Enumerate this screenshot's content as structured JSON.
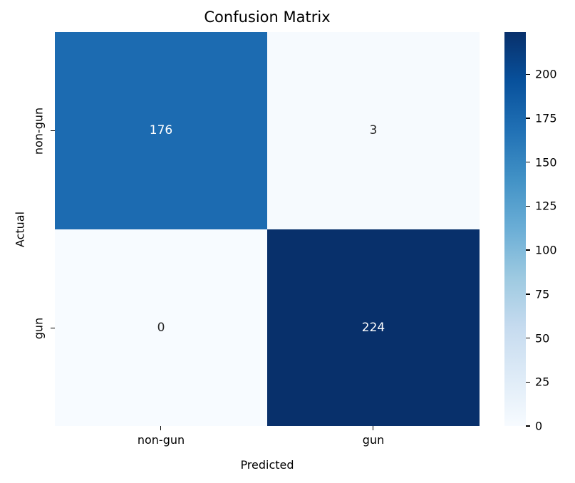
{
  "chart_data": {
    "type": "heatmap",
    "title": "Confusion Matrix",
    "xlabel": "Predicted",
    "ylabel": "Actual",
    "x_categories": [
      "non-gun",
      "gun"
    ],
    "y_categories": [
      "non-gun",
      "gun"
    ],
    "matrix": [
      [
        176,
        3
      ],
      [
        0,
        224
      ]
    ],
    "vmin": 0,
    "vmax": 224,
    "colormap": "Blues",
    "legend_position": "right-colorbar",
    "grid": false,
    "colorbar_ticks": [
      0,
      25,
      50,
      75,
      100,
      125,
      150,
      175,
      200
    ],
    "cell_colors": [
      [
        "#1c6bb1",
        "#f6fafe"
      ],
      [
        "#f7fbff",
        "#08306b"
      ]
    ],
    "cell_text_colors": [
      [
        "#ffffff",
        "#262626"
      ],
      [
        "#262626",
        "#ffffff"
      ]
    ],
    "colormap_stops": [
      "#f7fbff",
      "#deebf7",
      "#c6dbef",
      "#9ecae1",
      "#6baed6",
      "#4292c6",
      "#2171b5",
      "#08519c",
      "#08306b"
    ]
  }
}
